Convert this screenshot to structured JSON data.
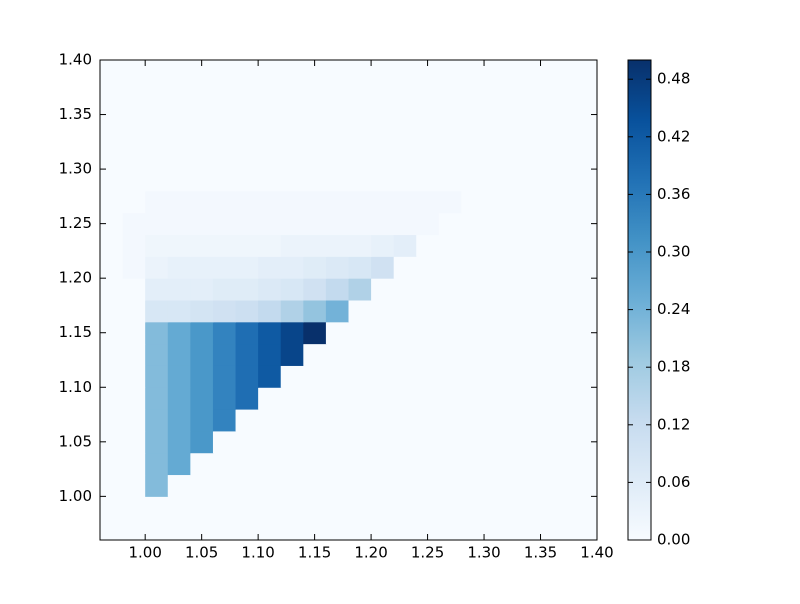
{
  "chart_data": {
    "type": "heatmap",
    "colormap": "Blues",
    "x": [
      0.97,
      0.99,
      1.01,
      1.03,
      1.05,
      1.07,
      1.09,
      1.11,
      1.13,
      1.15,
      1.17,
      1.19,
      1.21,
      1.23,
      1.25,
      1.27,
      1.29,
      1.31,
      1.33,
      1.35,
      1.37,
      1.39
    ],
    "y": [
      0.97,
      0.99,
      1.01,
      1.03,
      1.05,
      1.07,
      1.09,
      1.11,
      1.13,
      1.15,
      1.17,
      1.19,
      1.21,
      1.23,
      1.25,
      1.27,
      1.29,
      1.31,
      1.33,
      1.35,
      1.37,
      1.39
    ],
    "z": [
      [
        0,
        0,
        0,
        0,
        0,
        0,
        0,
        0,
        0,
        0,
        0,
        0,
        0,
        0,
        0,
        0,
        0,
        0,
        0,
        0,
        0,
        0
      ],
      [
        0,
        0,
        0,
        0,
        0,
        0,
        0,
        0,
        0,
        0,
        0,
        0,
        0,
        0,
        0,
        0,
        0,
        0,
        0,
        0,
        0,
        0
      ],
      [
        0,
        0,
        0.22,
        0,
        0,
        0,
        0,
        0,
        0,
        0,
        0,
        0,
        0,
        0,
        0,
        0,
        0,
        0,
        0,
        0,
        0,
        0
      ],
      [
        0,
        0,
        0.22,
        0.26,
        0,
        0,
        0,
        0,
        0,
        0,
        0,
        0,
        0,
        0,
        0,
        0,
        0,
        0,
        0,
        0,
        0,
        0
      ],
      [
        0,
        0,
        0.22,
        0.26,
        0.3,
        0,
        0,
        0,
        0,
        0,
        0,
        0,
        0,
        0,
        0,
        0,
        0,
        0,
        0,
        0,
        0,
        0
      ],
      [
        0,
        0,
        0.22,
        0.26,
        0.3,
        0.34,
        0,
        0,
        0,
        0,
        0,
        0,
        0,
        0,
        0,
        0,
        0,
        0,
        0,
        0,
        0,
        0
      ],
      [
        0,
        0,
        0.22,
        0.26,
        0.3,
        0.34,
        0.38,
        0,
        0,
        0,
        0,
        0,
        0,
        0,
        0,
        0,
        0,
        0,
        0,
        0,
        0,
        0
      ],
      [
        0,
        0,
        0.22,
        0.26,
        0.3,
        0.34,
        0.38,
        0.42,
        0,
        0,
        0,
        0,
        0,
        0,
        0,
        0,
        0,
        0,
        0,
        0,
        0,
        0
      ],
      [
        0,
        0,
        0.22,
        0.26,
        0.3,
        0.34,
        0.38,
        0.42,
        0.46,
        0,
        0,
        0,
        0,
        0,
        0,
        0,
        0,
        0,
        0,
        0,
        0,
        0
      ],
      [
        0,
        0,
        0.22,
        0.26,
        0.3,
        0.34,
        0.38,
        0.42,
        0.46,
        0.5,
        0,
        0,
        0,
        0,
        0,
        0,
        0,
        0,
        0,
        0,
        0,
        0
      ],
      [
        0,
        0,
        0.08,
        0.08,
        0.09,
        0.1,
        0.11,
        0.13,
        0.16,
        0.2,
        0.24,
        0,
        0,
        0,
        0,
        0,
        0,
        0,
        0,
        0,
        0,
        0
      ],
      [
        0,
        0,
        0.05,
        0.05,
        0.05,
        0.06,
        0.06,
        0.07,
        0.08,
        0.1,
        0.13,
        0.16,
        0,
        0,
        0,
        0,
        0,
        0,
        0,
        0,
        0,
        0
      ],
      [
        0,
        0.01,
        0.03,
        0.04,
        0.04,
        0.04,
        0.04,
        0.05,
        0.05,
        0.06,
        0.07,
        0.08,
        0.1,
        0,
        0,
        0,
        0,
        0,
        0,
        0,
        0,
        0
      ],
      [
        0,
        0.01,
        0.02,
        0.02,
        0.02,
        0.02,
        0.02,
        0.02,
        0.03,
        0.03,
        0.03,
        0.03,
        0.04,
        0.05,
        0,
        0,
        0,
        0,
        0,
        0,
        0,
        0
      ],
      [
        0,
        0.01,
        0.01,
        0.01,
        0.01,
        0.01,
        0.01,
        0.01,
        0.01,
        0.01,
        0.01,
        0.01,
        0.01,
        0.01,
        0.01,
        0,
        0,
        0,
        0,
        0,
        0,
        0
      ],
      [
        0,
        0,
        0.01,
        0.01,
        0.01,
        0.01,
        0.01,
        0.01,
        0.01,
        0.01,
        0.01,
        0.01,
        0.01,
        0.01,
        0.01,
        0.01,
        0,
        0,
        0,
        0,
        0,
        0
      ],
      [
        0,
        0,
        0,
        0,
        0,
        0,
        0,
        0,
        0,
        0,
        0,
        0,
        0,
        0,
        0,
        0,
        0,
        0,
        0,
        0,
        0,
        0
      ],
      [
        0,
        0,
        0,
        0,
        0,
        0,
        0,
        0,
        0,
        0,
        0,
        0,
        0,
        0,
        0,
        0,
        0,
        0,
        0,
        0,
        0,
        0
      ],
      [
        0,
        0,
        0,
        0,
        0,
        0,
        0,
        0,
        0,
        0,
        0,
        0,
        0,
        0,
        0,
        0,
        0,
        0,
        0,
        0,
        0,
        0
      ],
      [
        0,
        0,
        0,
        0,
        0,
        0,
        0,
        0,
        0,
        0,
        0,
        0,
        0,
        0,
        0,
        0,
        0,
        0,
        0,
        0,
        0,
        0
      ],
      [
        0,
        0,
        0,
        0,
        0,
        0,
        0,
        0,
        0,
        0,
        0,
        0,
        0,
        0,
        0,
        0,
        0,
        0,
        0,
        0,
        0,
        0
      ],
      [
        0,
        0,
        0,
        0,
        0,
        0,
        0,
        0,
        0,
        0,
        0,
        0,
        0,
        0,
        0,
        0,
        0,
        0,
        0,
        0,
        0,
        0
      ]
    ],
    "xlim": [
      0.96,
      1.4
    ],
    "ylim": [
      0.96,
      1.4
    ],
    "xticks": [
      {
        "value": 1.0,
        "label": "1.00"
      },
      {
        "value": 1.05,
        "label": "1.05"
      },
      {
        "value": 1.1,
        "label": "1.10"
      },
      {
        "value": 1.15,
        "label": "1.15"
      },
      {
        "value": 1.2,
        "label": "1.20"
      },
      {
        "value": 1.25,
        "label": "1.25"
      },
      {
        "value": 1.3,
        "label": "1.30"
      },
      {
        "value": 1.35,
        "label": "1.35"
      },
      {
        "value": 1.4,
        "label": "1.40"
      }
    ],
    "yticks": [
      {
        "value": 1.0,
        "label": "1.00"
      },
      {
        "value": 1.05,
        "label": "1.05"
      },
      {
        "value": 1.1,
        "label": "1.10"
      },
      {
        "value": 1.15,
        "label": "1.15"
      },
      {
        "value": 1.2,
        "label": "1.20"
      },
      {
        "value": 1.25,
        "label": "1.25"
      },
      {
        "value": 1.3,
        "label": "1.30"
      },
      {
        "value": 1.35,
        "label": "1.35"
      },
      {
        "value": 1.4,
        "label": "1.40"
      }
    ],
    "clim": [
      0,
      0.5
    ],
    "cticks": [
      {
        "value": 0,
        "label": "0.00"
      },
      {
        "value": 0.06,
        "label": "0.06"
      },
      {
        "value": 0.12,
        "label": "0.12"
      },
      {
        "value": 0.18,
        "label": "0.18"
      },
      {
        "value": 0.24,
        "label": "0.24"
      },
      {
        "value": 0.3,
        "label": "0.30"
      },
      {
        "value": 0.36,
        "label": "0.36"
      },
      {
        "value": 0.42,
        "label": "0.42"
      },
      {
        "value": 0.48,
        "label": "0.48"
      }
    ]
  }
}
